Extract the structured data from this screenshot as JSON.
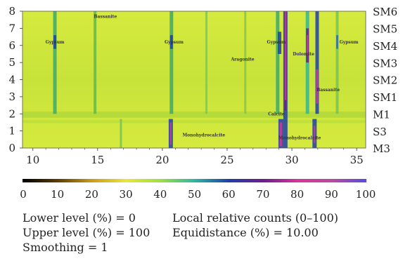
{
  "chart_data": {
    "type": "heatmap",
    "x_ticks": [
      "10",
      "15",
      "20",
      "25",
      "30",
      "35"
    ],
    "x_range": [
      9.2,
      35.7
    ],
    "y_ticks": [
      "0",
      "1",
      "2",
      "3",
      "4",
      "5",
      "6",
      "7",
      "8"
    ],
    "y_range": [
      0,
      8
    ],
    "samples": [
      "SM6",
      "SM5",
      "SM4",
      "SM3",
      "SM2",
      "SM1",
      "M1",
      "S3",
      "M3"
    ],
    "annotations": [
      {
        "text": "Gypsum",
        "x": 11.7,
        "y": 6.2
      },
      {
        "text": "Bassanite",
        "x": 15.6,
        "y": 7.7
      },
      {
        "text": "Gypsum",
        "x": 20.9,
        "y": 6.2
      },
      {
        "text": "Aragonite",
        "x": 26.2,
        "y": 5.2
      },
      {
        "text": "Gypsum",
        "x": 28.8,
        "y": 6.2
      },
      {
        "text": "Dolomite",
        "x": 30.9,
        "y": 5.5
      },
      {
        "text": "Gypsum",
        "x": 34.4,
        "y": 6.2
      },
      {
        "text": "Bassanite",
        "x": 32.8,
        "y": 3.4
      },
      {
        "text": "Calcite",
        "x": 28.8,
        "y": 2.0
      },
      {
        "text": "Monohydrocalcite",
        "x": 23.2,
        "y": 0.75
      },
      {
        "text": "Monohydrocalcite",
        "x": 30.6,
        "y": 0.6
      }
    ],
    "colorbar": {
      "ticks": [
        "0",
        "10",
        "20",
        "30",
        "40",
        "50",
        "60",
        "70",
        "80",
        "90",
        "100"
      ],
      "colors": [
        "#000000",
        "#5a3a00",
        "#c99a1a",
        "#e9e53c",
        "#9fe040",
        "#2db7a0",
        "#1f3ea8",
        "#6b1d8c",
        "#d8359a",
        "#b84a9e",
        "#5a4be0"
      ]
    },
    "background_color": "#cfe63a"
  },
  "params": {
    "lower": "Lower level (%) = 0",
    "upper": "Upper level (%) = 100",
    "smoothing": "Smoothing = 1",
    "local": "Local relative counts (0–100)",
    "equidistance": "Equidistance (%)  = 10.00"
  }
}
